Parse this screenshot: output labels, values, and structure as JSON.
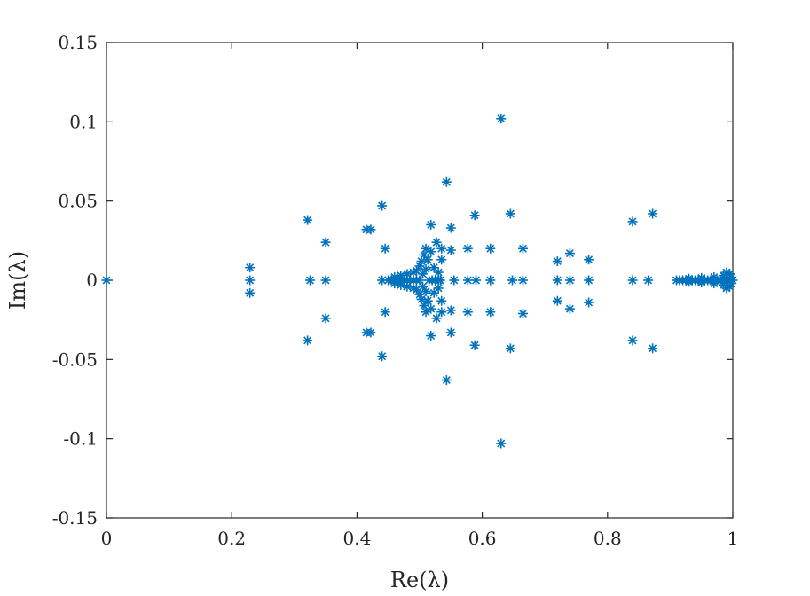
{
  "chart_data": {
    "type": "scatter",
    "xlabel": "Re(λ)",
    "ylabel": "Im(λ)",
    "xlim": [
      0,
      1
    ],
    "ylim": [
      -0.15,
      0.15
    ],
    "x_ticks": [
      0,
      0.2,
      0.4,
      0.6,
      0.8,
      1
    ],
    "x_tick_labels": [
      "0",
      "0.2",
      "0.4",
      "0.6",
      "0.8",
      "1"
    ],
    "y_ticks": [
      0.15,
      0.1,
      0.05,
      0,
      -0.05,
      -0.1,
      -0.15
    ],
    "y_tick_labels": [
      "0.15",
      "0.1",
      "0.05",
      "0",
      "-0.05",
      "-0.1",
      "-0.15"
    ],
    "marker": "asterisk",
    "grid": false,
    "color": "#0072BD",
    "series": [
      {
        "points": [
          [
            0,
            0
          ],
          [
            0.229,
            0.008
          ],
          [
            0.229,
            0
          ],
          [
            0.229,
            -0.008
          ],
          [
            0.321,
            0.038
          ],
          [
            0.321,
            -0.038
          ],
          [
            0.325,
            0
          ],
          [
            0.35,
            0.024
          ],
          [
            0.35,
            0
          ],
          [
            0.35,
            -0.024
          ],
          [
            0.415,
            0.032
          ],
          [
            0.422,
            0.032
          ],
          [
            0.415,
            -0.033
          ],
          [
            0.422,
            -0.033
          ],
          [
            0.44,
            0.047
          ],
          [
            0.44,
            -0.048
          ],
          [
            0.445,
            0.02
          ],
          [
            0.445,
            -0.02
          ],
          [
            0.44,
            0
          ],
          [
            0.45,
            0
          ],
          [
            0.455,
            0
          ],
          [
            0.46,
            0
          ],
          [
            0.465,
            0
          ],
          [
            0.47,
            0
          ],
          [
            0.475,
            0
          ],
          [
            0.48,
            0
          ],
          [
            0.485,
            0
          ],
          [
            0.49,
            0
          ],
          [
            0.495,
            0
          ],
          [
            0.5,
            0
          ],
          [
            0.46,
            0.002
          ],
          [
            0.47,
            0.003
          ],
          [
            0.48,
            0.004
          ],
          [
            0.49,
            0.005
          ],
          [
            0.495,
            0.006
          ],
          [
            0.46,
            -0.002
          ],
          [
            0.47,
            -0.003
          ],
          [
            0.48,
            -0.004
          ],
          [
            0.49,
            -0.005
          ],
          [
            0.495,
            -0.006
          ],
          [
            0.5,
            0.009
          ],
          [
            0.503,
            0.012
          ],
          [
            0.507,
            0.016
          ],
          [
            0.51,
            0.02
          ],
          [
            0.5,
            -0.009
          ],
          [
            0.503,
            -0.012
          ],
          [
            0.507,
            -0.016
          ],
          [
            0.51,
            -0.02
          ],
          [
            0.513,
            0.013
          ],
          [
            0.518,
            0.018
          ],
          [
            0.513,
            -0.013
          ],
          [
            0.518,
            -0.018
          ],
          [
            0.505,
            0.004
          ],
          [
            0.505,
            -0.004
          ],
          [
            0.51,
            0.007
          ],
          [
            0.51,
            -0.007
          ],
          [
            0.515,
            0
          ],
          [
            0.52,
            0
          ],
          [
            0.525,
            0
          ],
          [
            0.53,
            0
          ],
          [
            0.533,
            0
          ],
          [
            0.518,
            0.035
          ],
          [
            0.518,
            -0.035
          ],
          [
            0.523,
            0.008
          ],
          [
            0.523,
            -0.008
          ],
          [
            0.53,
            0.005
          ],
          [
            0.53,
            -0.005
          ],
          [
            0.527,
            0.024
          ],
          [
            0.527,
            -0.024
          ],
          [
            0.535,
            0.02
          ],
          [
            0.535,
            -0.02
          ],
          [
            0.535,
            0.013
          ],
          [
            0.535,
            -0.013
          ],
          [
            0.543,
            0.062
          ],
          [
            0.543,
            -0.063
          ],
          [
            0.55,
            0.033
          ],
          [
            0.55,
            -0.033
          ],
          [
            0.55,
            0.019
          ],
          [
            0.55,
            -0.019
          ],
          [
            0.555,
            0
          ],
          [
            0.577,
            0.02
          ],
          [
            0.577,
            0
          ],
          [
            0.577,
            -0.02
          ],
          [
            0.59,
            0
          ],
          [
            0.588,
            0.041
          ],
          [
            0.588,
            -0.041
          ],
          [
            0.613,
            0.02
          ],
          [
            0.613,
            0
          ],
          [
            0.613,
            -0.02
          ],
          [
            0.63,
            0.102
          ],
          [
            0.63,
            -0.103
          ],
          [
            0.645,
            0.042
          ],
          [
            0.645,
            -0.043
          ],
          [
            0.648,
            0
          ],
          [
            0.665,
            0.02
          ],
          [
            0.665,
            0
          ],
          [
            0.665,
            -0.021
          ],
          [
            0.72,
            0.012
          ],
          [
            0.72,
            0
          ],
          [
            0.72,
            -0.013
          ],
          [
            0.74,
            0.017
          ],
          [
            0.74,
            0
          ],
          [
            0.74,
            -0.018
          ],
          [
            0.77,
            0.013
          ],
          [
            0.77,
            0
          ],
          [
            0.77,
            -0.014
          ],
          [
            0.84,
            0.037
          ],
          [
            0.84,
            0
          ],
          [
            0.84,
            -0.038
          ],
          [
            0.872,
            0.042
          ],
          [
            0.872,
            -0.043
          ],
          [
            0.865,
            0
          ],
          [
            0.91,
            0
          ],
          [
            0.915,
            0
          ],
          [
            0.92,
            0
          ],
          [
            0.925,
            0
          ],
          [
            0.93,
            0
          ],
          [
            0.935,
            0
          ],
          [
            0.94,
            0
          ],
          [
            0.945,
            0
          ],
          [
            0.95,
            0
          ],
          [
            0.955,
            0
          ],
          [
            0.96,
            0
          ],
          [
            0.965,
            0
          ],
          [
            0.97,
            0
          ],
          [
            0.975,
            0
          ],
          [
            0.98,
            0
          ],
          [
            0.985,
            0
          ],
          [
            0.99,
            0
          ],
          [
            0.995,
            0
          ],
          [
            1.0,
            0
          ],
          [
            0.93,
            0.001
          ],
          [
            0.95,
            0.0015
          ],
          [
            0.97,
            0.002
          ],
          [
            0.985,
            0.003
          ],
          [
            0.995,
            0.004
          ],
          [
            0.93,
            -0.001
          ],
          [
            0.95,
            -0.0015
          ],
          [
            0.97,
            -0.002
          ],
          [
            0.985,
            -0.003
          ],
          [
            0.995,
            -0.004
          ],
          [
            0.99,
            0.005
          ],
          [
            0.99,
            -0.005
          ],
          [
            0.997,
            0.002
          ],
          [
            0.997,
            -0.002
          ]
        ]
      }
    ]
  }
}
